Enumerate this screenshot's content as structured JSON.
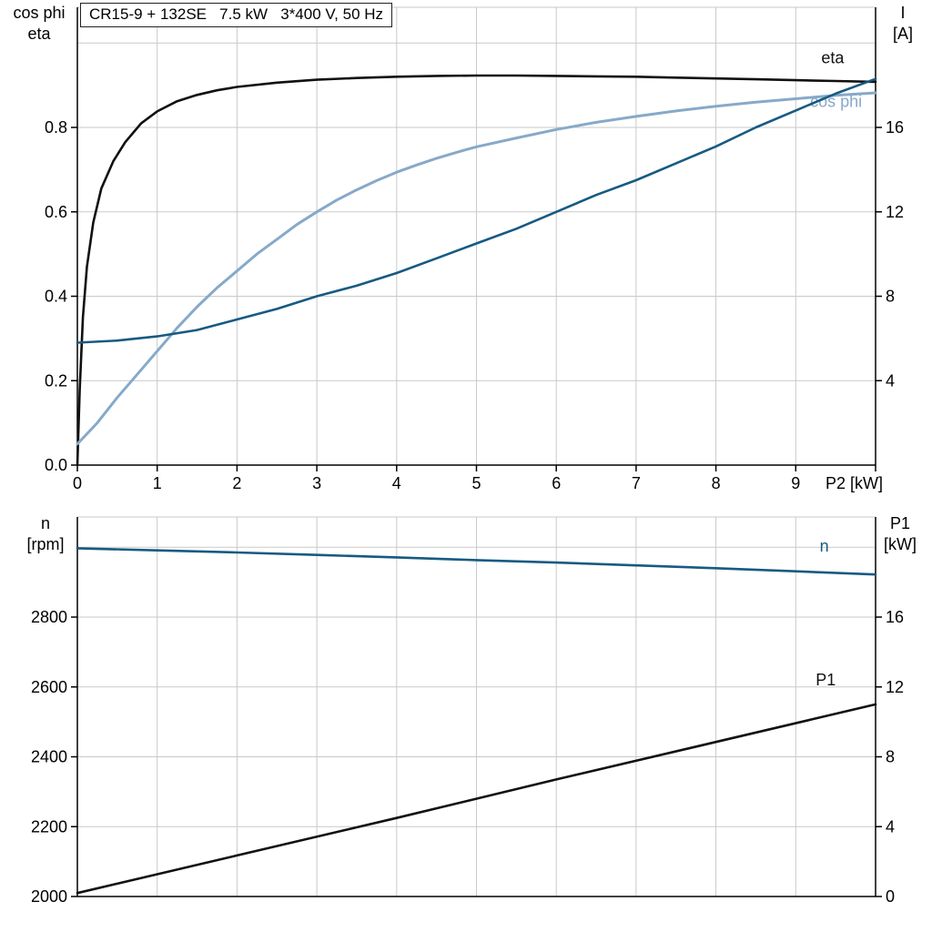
{
  "colors": {
    "black": "#111111",
    "dark_blue": "#175a82",
    "light_blue": "#87a9c9",
    "grid": "#c9c9c9",
    "axis": "#000000"
  },
  "chart_data": [
    {
      "type": "line",
      "title": "CR15-9 + 132SE   7.5 kW   3*400 V, 50 Hz",
      "x_range": [
        0,
        10
      ],
      "x_grid": [
        1,
        2,
        3,
        4,
        5,
        6,
        7,
        8,
        9
      ],
      "x_ticks": [
        {
          "v": 0,
          "t": "0"
        },
        {
          "v": 1,
          "t": "1"
        },
        {
          "v": 2,
          "t": "2"
        },
        {
          "v": 3,
          "t": "3"
        },
        {
          "v": 4,
          "t": "4"
        },
        {
          "v": 5,
          "t": "5"
        },
        {
          "v": 6,
          "t": "6"
        },
        {
          "v": 7,
          "t": "7"
        },
        {
          "v": 8,
          "t": "8"
        },
        {
          "v": 9,
          "t": "9"
        },
        {
          "v": 10,
          "t": "P2 [kW]",
          "anchor": "end",
          "dx": 8
        }
      ],
      "left_axis": {
        "name": [
          "cos phi",
          "eta"
        ],
        "range": [
          0,
          1.085
        ],
        "ticks": [
          {
            "v": 0,
            "t": "0.0"
          },
          {
            "v": 0.2,
            "t": "0.2"
          },
          {
            "v": 0.4,
            "t": "0.4"
          },
          {
            "v": 0.6,
            "t": "0.6"
          },
          {
            "v": 0.8,
            "t": "0.8"
          }
        ],
        "grid": [
          0.2,
          0.4,
          0.6,
          0.8,
          1.0
        ]
      },
      "right_axis": {
        "name": [
          "I",
          "[A]"
        ],
        "range": [
          0,
          21.7
        ],
        "ticks": [
          {
            "v": 4,
            "t": "4"
          },
          {
            "v": 8,
            "t": "8"
          },
          {
            "v": 12,
            "t": "12"
          },
          {
            "v": 16,
            "t": "16"
          }
        ]
      },
      "series": [
        {
          "key": "eta",
          "label": "eta",
          "color": "black",
          "axis": "left",
          "width": 2.6,
          "label_at": [
            9.32,
            0.952
          ],
          "points": [
            [
              0,
              0.0
            ],
            [
              0.03,
              0.18
            ],
            [
              0.07,
              0.35
            ],
            [
              0.12,
              0.47
            ],
            [
              0.2,
              0.575
            ],
            [
              0.3,
              0.655
            ],
            [
              0.45,
              0.72
            ],
            [
              0.6,
              0.765
            ],
            [
              0.8,
              0.81
            ],
            [
              1,
              0.838
            ],
            [
              1.25,
              0.862
            ],
            [
              1.5,
              0.877
            ],
            [
              1.75,
              0.888
            ],
            [
              2,
              0.896
            ],
            [
              2.5,
              0.906
            ],
            [
              3,
              0.913
            ],
            [
              3.5,
              0.917
            ],
            [
              4,
              0.92
            ],
            [
              4.5,
              0.922
            ],
            [
              5,
              0.923
            ],
            [
              5.5,
              0.923
            ],
            [
              6,
              0.922
            ],
            [
              6.5,
              0.921
            ],
            [
              7,
              0.92
            ],
            [
              7.5,
              0.918
            ],
            [
              8,
              0.916
            ],
            [
              8.5,
              0.914
            ],
            [
              9,
              0.912
            ],
            [
              9.5,
              0.91
            ],
            [
              10,
              0.908
            ]
          ]
        },
        {
          "key": "cos-phi",
          "label": "cos phi",
          "color": "light_blue",
          "axis": "left",
          "width": 3,
          "label_at": [
            9.18,
            0.848
          ],
          "points": [
            [
              0,
              0.05
            ],
            [
              0.25,
              0.1
            ],
            [
              0.5,
              0.16
            ],
            [
              0.75,
              0.215
            ],
            [
              1,
              0.27
            ],
            [
              1.25,
              0.325
            ],
            [
              1.5,
              0.375
            ],
            [
              1.75,
              0.42
            ],
            [
              2,
              0.46
            ],
            [
              2.25,
              0.5
            ],
            [
              2.5,
              0.535
            ],
            [
              2.75,
              0.57
            ],
            [
              3,
              0.6
            ],
            [
              3.25,
              0.628
            ],
            [
              3.5,
              0.652
            ],
            [
              3.75,
              0.674
            ],
            [
              4,
              0.694
            ],
            [
              4.25,
              0.711
            ],
            [
              4.5,
              0.727
            ],
            [
              4.75,
              0.741
            ],
            [
              5,
              0.754
            ],
            [
              5.5,
              0.775
            ],
            [
              6,
              0.795
            ],
            [
              6.5,
              0.812
            ],
            [
              7,
              0.826
            ],
            [
              7.5,
              0.839
            ],
            [
              8,
              0.85
            ],
            [
              8.5,
              0.86
            ],
            [
              9,
              0.868
            ],
            [
              9.5,
              0.876
            ],
            [
              10,
              0.882
            ]
          ]
        },
        {
          "key": "current",
          "label": "I",
          "color": "dark_blue",
          "axis": "right",
          "width": 2.6,
          "label_at": null,
          "points": [
            [
              0,
              5.8
            ],
            [
              0.5,
              5.9
            ],
            [
              1,
              6.1
            ],
            [
              1.5,
              6.4
            ],
            [
              2,
              6.9
            ],
            [
              2.5,
              7.4
            ],
            [
              3,
              8.0
            ],
            [
              3.5,
              8.5
            ],
            [
              4,
              9.1
            ],
            [
              4.5,
              9.8
            ],
            [
              5,
              10.5
            ],
            [
              5.5,
              11.2
            ],
            [
              6,
              12.0
            ],
            [
              6.5,
              12.8
            ],
            [
              7,
              13.5
            ],
            [
              7.5,
              14.3
            ],
            [
              8,
              15.1
            ],
            [
              8.5,
              16.0
            ],
            [
              9,
              16.8
            ],
            [
              9.5,
              17.6
            ],
            [
              10,
              18.3
            ]
          ]
        }
      ]
    },
    {
      "type": "line",
      "title": "",
      "x_range": [
        0,
        10
      ],
      "x_grid": [
        1,
        2,
        3,
        4,
        5,
        6,
        7,
        8,
        9
      ],
      "x_ticks": [],
      "left_axis": {
        "name": [
          "n",
          "[rpm]"
        ],
        "range": [
          2000,
          3087
        ],
        "ticks": [
          {
            "v": 2000,
            "t": "2000"
          },
          {
            "v": 2200,
            "t": "2200"
          },
          {
            "v": 2400,
            "t": "2400"
          },
          {
            "v": 2600,
            "t": "2600"
          },
          {
            "v": 2800,
            "t": "2800"
          }
        ],
        "grid": [
          2200,
          2400,
          2600,
          2800,
          3000
        ]
      },
      "right_axis": {
        "name": [
          "P1",
          "[kW]"
        ],
        "range": [
          0,
          21.7
        ],
        "ticks": [
          {
            "v": 0,
            "t": "0"
          },
          {
            "v": 4,
            "t": "4"
          },
          {
            "v": 8,
            "t": "8"
          },
          {
            "v": 12,
            "t": "12"
          },
          {
            "v": 16,
            "t": "16"
          }
        ]
      },
      "series": [
        {
          "key": "speed",
          "label": "n",
          "color": "dark_blue",
          "axis": "left",
          "width": 2.6,
          "label_at": [
            9.3,
            2988
          ],
          "points": [
            [
              0,
              2997
            ],
            [
              1,
              2991
            ],
            [
              2,
              2985
            ],
            [
              3,
              2978
            ],
            [
              4,
              2971
            ],
            [
              5,
              2963
            ],
            [
              6,
              2956
            ],
            [
              7,
              2948
            ],
            [
              8,
              2940
            ],
            [
              9,
              2931
            ],
            [
              10,
              2922
            ]
          ]
        },
        {
          "key": "p1",
          "label": "P1",
          "color": "black",
          "axis": "right",
          "width": 2.6,
          "label_at": [
            9.25,
            12.1
          ],
          "points": [
            [
              0,
              0.2
            ],
            [
              2,
              2.35
            ],
            [
              4,
              4.5
            ],
            [
              6,
              6.7
            ],
            [
              8,
              8.85
            ],
            [
              10,
              11.0
            ]
          ]
        }
      ]
    }
  ]
}
